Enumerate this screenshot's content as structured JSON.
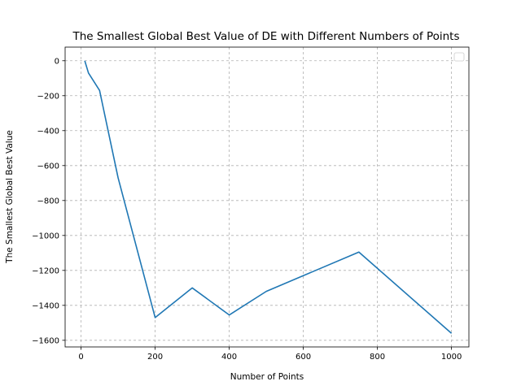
{
  "chart_data": {
    "type": "line",
    "title": "The Smallest Global Best Value of DE with Different Numbers of Points",
    "xlabel": "Number of Points",
    "ylabel": "The Smallest Global Best Value",
    "xlim": [
      -43,
      1047
    ],
    "ylim": [
      -1638,
      78
    ],
    "xticks": [
      0,
      200,
      400,
      600,
      800,
      1000
    ],
    "yticks": [
      0,
      -200,
      -400,
      -600,
      -800,
      -1000,
      -1200,
      -1400,
      -1600
    ],
    "xtick_labels": [
      "0",
      "200",
      "400",
      "600",
      "800",
      "1000"
    ],
    "ytick_labels": [
      "0",
      "−200",
      "−400",
      "−600",
      "−800",
      "−1000",
      "−1200",
      "−1400",
      "−1600"
    ],
    "grid": true,
    "grid_style": "dashed",
    "legend": "upper right (empty)",
    "series": [
      {
        "color": "#1f77b4",
        "x": [
          10,
          20,
          50,
          100,
          200,
          300,
          400,
          500,
          750,
          1000
        ],
        "y": [
          0,
          -70,
          -170,
          -670,
          -1470,
          -1300,
          -1455,
          -1320,
          -1095,
          -1560
        ]
      }
    ]
  }
}
